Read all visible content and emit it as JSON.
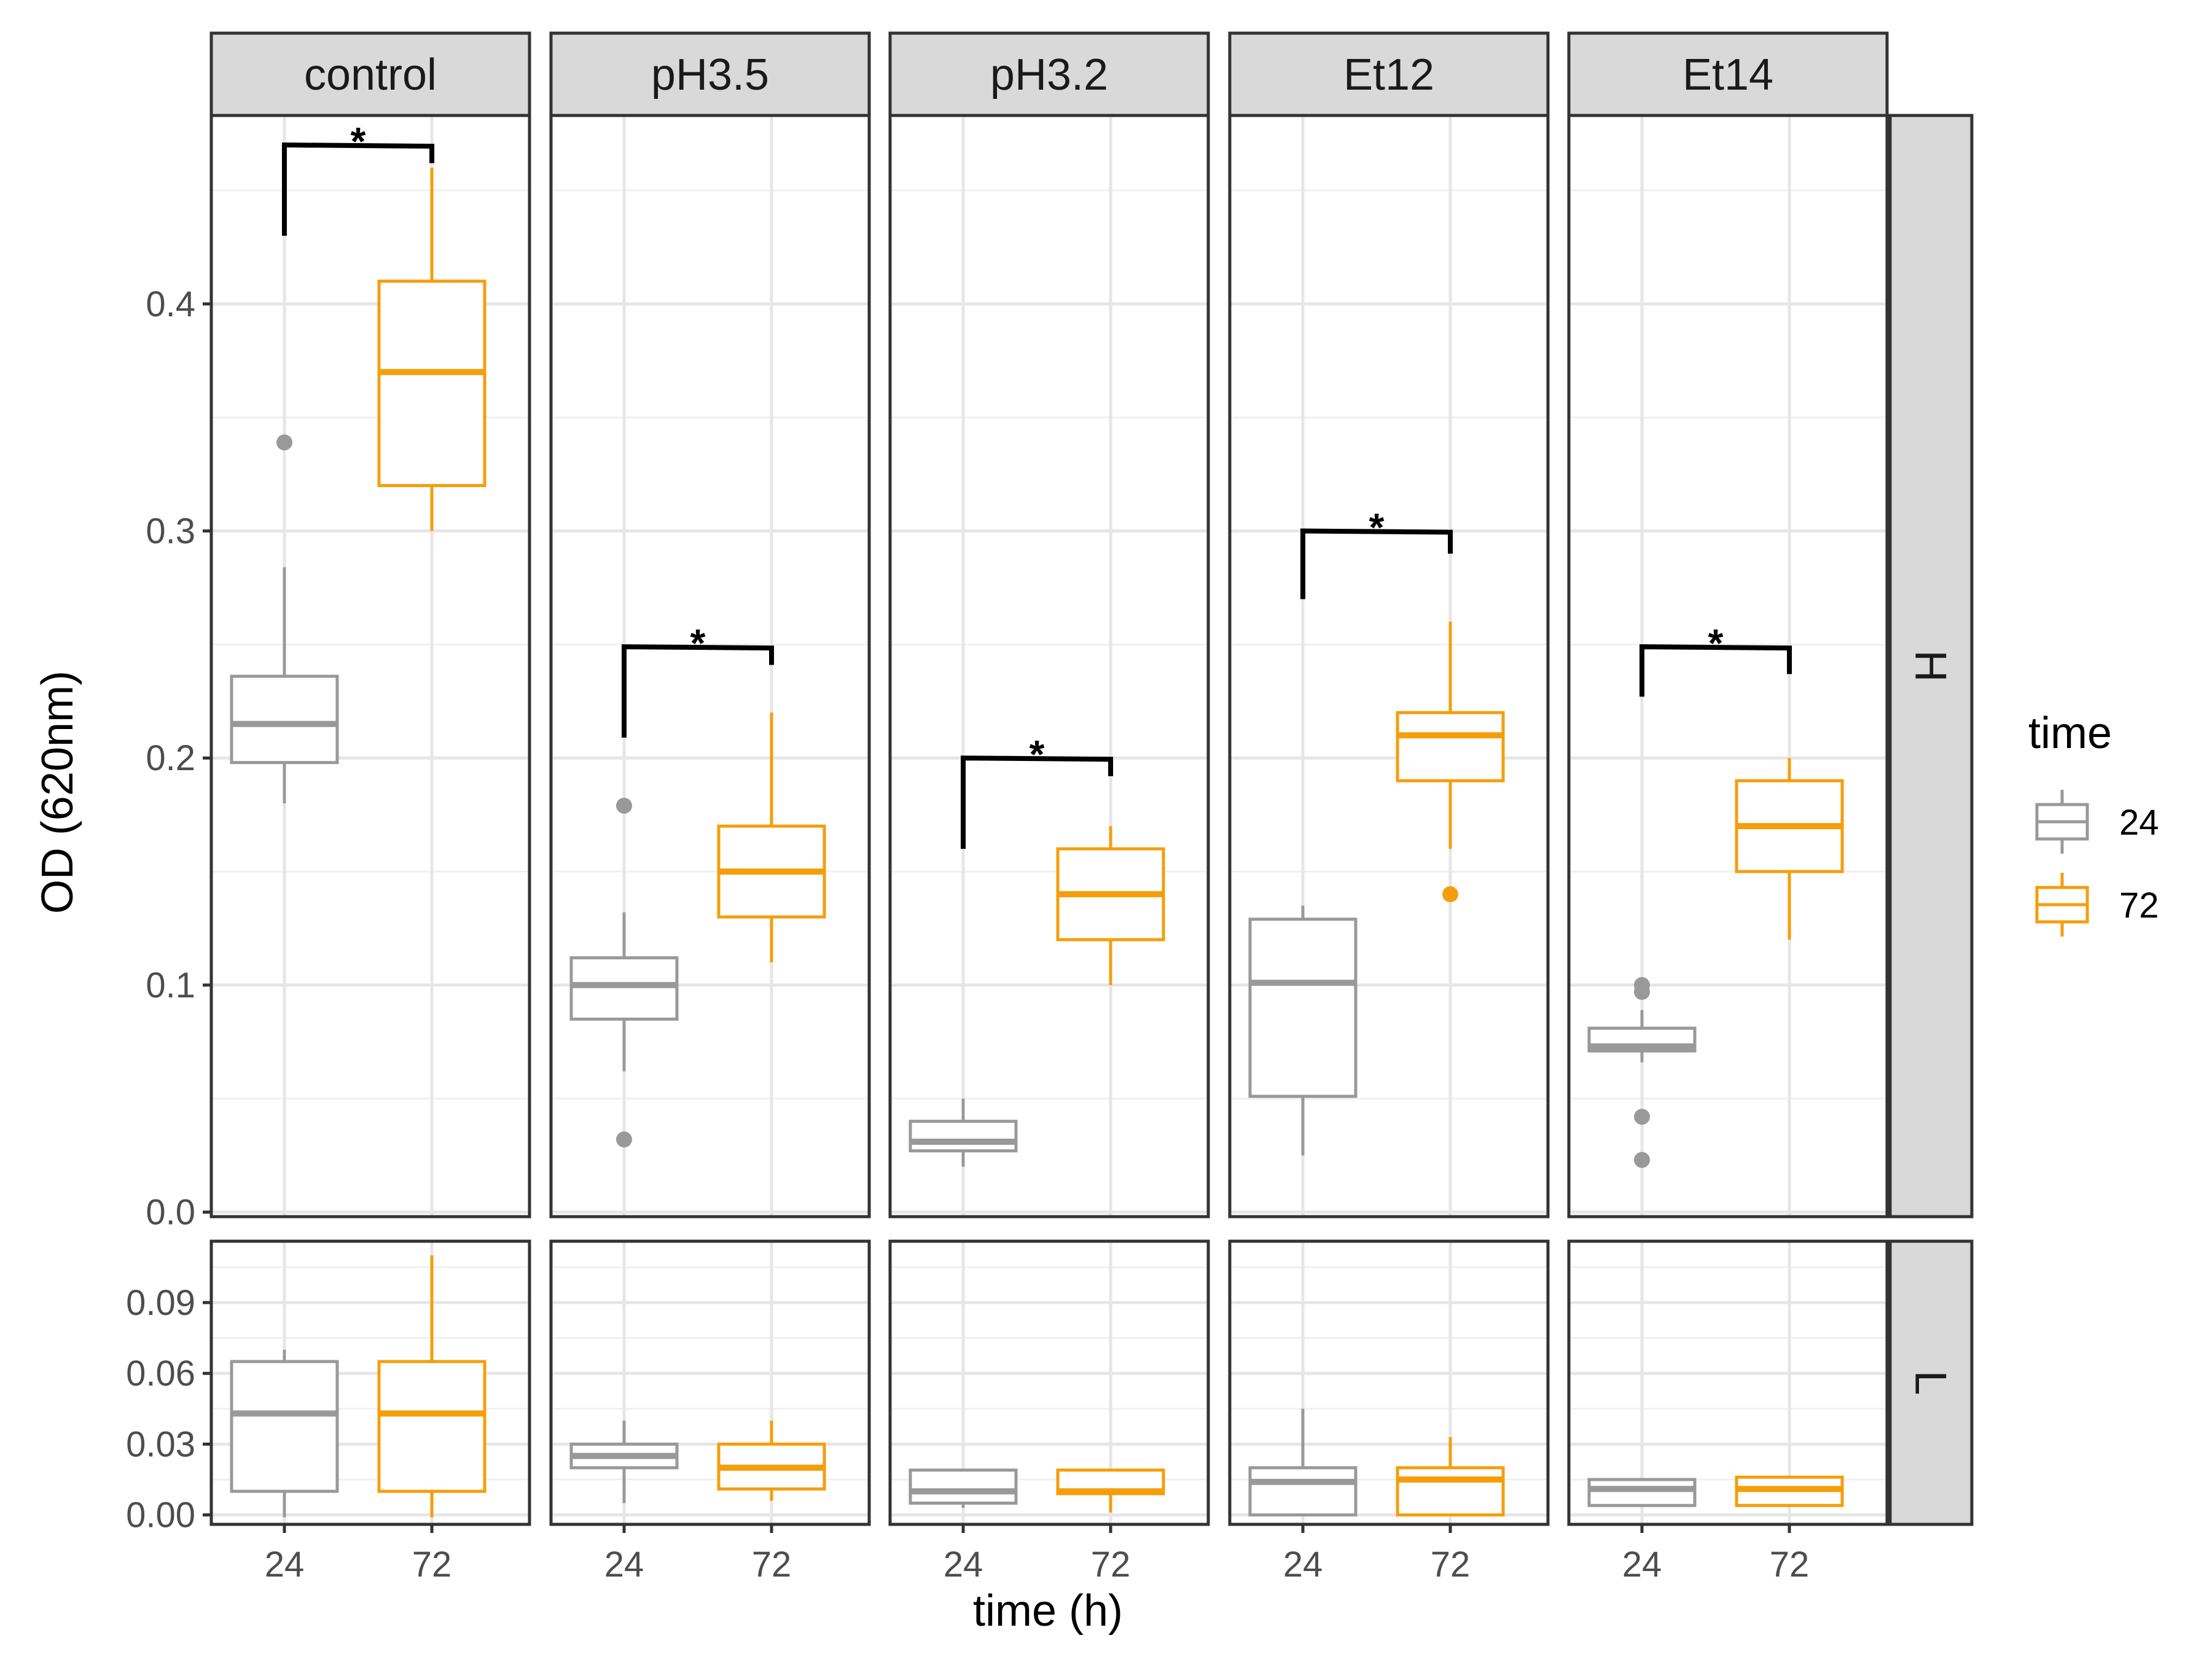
{
  "chart_data": {
    "type": "boxplot",
    "facets": {
      "columns": [
        "control",
        "pH3.5",
        "pH3.2",
        "Et12",
        "Et14"
      ],
      "rows": [
        "H",
        "L"
      ]
    },
    "xlabel": "time (h)",
    "ylabel": "OD (620nm)",
    "x_categories": [
      "24",
      "72"
    ],
    "legend": {
      "title": "time",
      "position": "right",
      "entries": [
        {
          "label": "24",
          "color": "#999999"
        },
        {
          "label": "72",
          "color": "#f59e0b"
        }
      ]
    },
    "rows": {
      "H": {
        "ylim": [
          -0.002,
          0.483
        ],
        "yticks": [
          0.0,
          0.1,
          0.2,
          0.3,
          0.4
        ],
        "ytick_labels": [
          "0.0",
          "0.1",
          "0.2",
          "0.3",
          "0.4"
        ]
      },
      "L": {
        "ylim": [
          -0.004,
          0.116
        ],
        "yticks": [
          0.0,
          0.03,
          0.06,
          0.09
        ],
        "ytick_labels": [
          "0.00",
          "0.03",
          "0.06",
          "0.09"
        ]
      }
    },
    "boxes": {
      "H": {
        "control": {
          "24": {
            "whisker_low": 0.18,
            "q1": 0.198,
            "median": 0.215,
            "q3": 0.236,
            "whisker_high": 0.284,
            "outliers": [
              0.339
            ]
          },
          "72": {
            "whisker_low": 0.3,
            "q1": 0.32,
            "median": 0.37,
            "q3": 0.41,
            "whisker_high": 0.46,
            "outliers": []
          }
        },
        "pH3.5": {
          "24": {
            "whisker_low": 0.062,
            "q1": 0.085,
            "median": 0.1,
            "q3": 0.112,
            "whisker_high": 0.132,
            "outliers": [
              0.179,
              0.032
            ]
          },
          "72": {
            "whisker_low": 0.11,
            "q1": 0.13,
            "median": 0.15,
            "q3": 0.17,
            "whisker_high": 0.22,
            "outliers": []
          }
        },
        "pH3.2": {
          "24": {
            "whisker_low": 0.02,
            "q1": 0.027,
            "median": 0.031,
            "q3": 0.04,
            "whisker_high": 0.05,
            "outliers": []
          },
          "72": {
            "whisker_low": 0.1,
            "q1": 0.12,
            "median": 0.14,
            "q3": 0.16,
            "whisker_high": 0.17,
            "outliers": []
          }
        },
        "Et12": {
          "24": {
            "whisker_low": 0.025,
            "q1": 0.051,
            "median": 0.101,
            "q3": 0.129,
            "whisker_high": 0.135,
            "outliers": []
          },
          "72": {
            "whisker_low": 0.16,
            "q1": 0.19,
            "median": 0.21,
            "q3": 0.22,
            "whisker_high": 0.26,
            "outliers": [
              0.14
            ]
          }
        },
        "Et14": {
          "24": {
            "whisker_low": 0.066,
            "q1": 0.071,
            "median": 0.073,
            "q3": 0.081,
            "whisker_high": 0.089,
            "outliers": [
              0.1,
              0.097,
              0.042,
              0.023
            ]
          },
          "72": {
            "whisker_low": 0.12,
            "q1": 0.15,
            "median": 0.17,
            "q3": 0.19,
            "whisker_high": 0.2,
            "outliers": []
          }
        }
      },
      "L": {
        "control": {
          "24": {
            "whisker_low": -0.001,
            "q1": 0.01,
            "median": 0.043,
            "q3": 0.065,
            "whisker_high": 0.07,
            "outliers": []
          },
          "72": {
            "whisker_low": -0.001,
            "q1": 0.01,
            "median": 0.043,
            "q3": 0.065,
            "whisker_high": 0.11,
            "outliers": []
          }
        },
        "pH3.5": {
          "24": {
            "whisker_low": 0.005,
            "q1": 0.02,
            "median": 0.025,
            "q3": 0.03,
            "whisker_high": 0.04,
            "outliers": []
          },
          "72": {
            "whisker_low": 0.006,
            "q1": 0.011,
            "median": 0.02,
            "q3": 0.03,
            "whisker_high": 0.04,
            "outliers": []
          }
        },
        "pH3.2": {
          "24": {
            "whisker_low": 0.003,
            "q1": 0.005,
            "median": 0.01,
            "q3": 0.019,
            "whisker_high": 0.019,
            "outliers": []
          },
          "72": {
            "whisker_low": 0.001,
            "q1": 0.009,
            "median": 0.01,
            "q3": 0.019,
            "whisker_high": 0.019,
            "outliers": []
          }
        },
        "Et12": {
          "24": {
            "whisker_low": 0.0,
            "q1": 0.0,
            "median": 0.014,
            "q3": 0.02,
            "whisker_high": 0.045,
            "outliers": []
          },
          "72": {
            "whisker_low": 0.0,
            "q1": 0.0,
            "median": 0.015,
            "q3": 0.02,
            "whisker_high": 0.033,
            "outliers": []
          }
        },
        "Et14": {
          "24": {
            "whisker_low": 0.004,
            "q1": 0.004,
            "median": 0.011,
            "q3": 0.015,
            "whisker_high": 0.015,
            "outliers": []
          },
          "72": {
            "whisker_low": 0.004,
            "q1": 0.004,
            "median": 0.011,
            "q3": 0.016,
            "whisker_high": 0.016,
            "outliers": []
          }
        }
      }
    },
    "significance": [
      {
        "row": "H",
        "facet": "control",
        "label": "*",
        "bar_y": 0.47,
        "left_end": 0.43,
        "right_end": 0.462
      },
      {
        "row": "H",
        "facet": "pH3.5",
        "label": "*",
        "bar_y": 0.249,
        "left_end": 0.209,
        "right_end": 0.241
      },
      {
        "row": "H",
        "facet": "pH3.2",
        "label": "*",
        "bar_y": 0.2,
        "left_end": 0.16,
        "right_end": 0.192
      },
      {
        "row": "H",
        "facet": "Et12",
        "label": "*",
        "bar_y": 0.3,
        "left_end": 0.27,
        "right_end": 0.29
      },
      {
        "row": "H",
        "facet": "Et14",
        "label": "*",
        "bar_y": 0.249,
        "left_end": 0.227,
        "right_end": 0.237
      }
    ]
  }
}
